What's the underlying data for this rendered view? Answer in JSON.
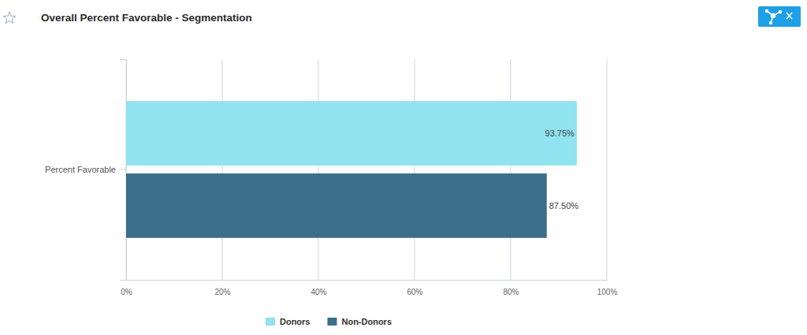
{
  "chart_data": {
    "type": "bar",
    "title": "Overall Percent Favorable - Segmentation",
    "orientation": "horizontal",
    "categories": [
      "Percent Favorable"
    ],
    "series": [
      {
        "name": "Donors",
        "color": "#90e3ef",
        "values": [
          93.75
        ],
        "value_labels": [
          "93.75%"
        ]
      },
      {
        "name": "Non-Donors",
        "color": "#3a6e8b",
        "values": [
          87.5
        ],
        "value_labels": [
          "87.50%"
        ]
      }
    ],
    "xlim": [
      0,
      100
    ],
    "xticks": [
      {
        "value": 0,
        "label": "0%"
      },
      {
        "value": 20,
        "label": "20%"
      },
      {
        "value": 40,
        "label": "40%"
      },
      {
        "value": 60,
        "label": "60%"
      },
      {
        "value": 80,
        "label": "80%"
      },
      {
        "value": 100,
        "label": "100%"
      }
    ],
    "grid": true,
    "data_labels": true,
    "legend": "bottom"
  }
}
